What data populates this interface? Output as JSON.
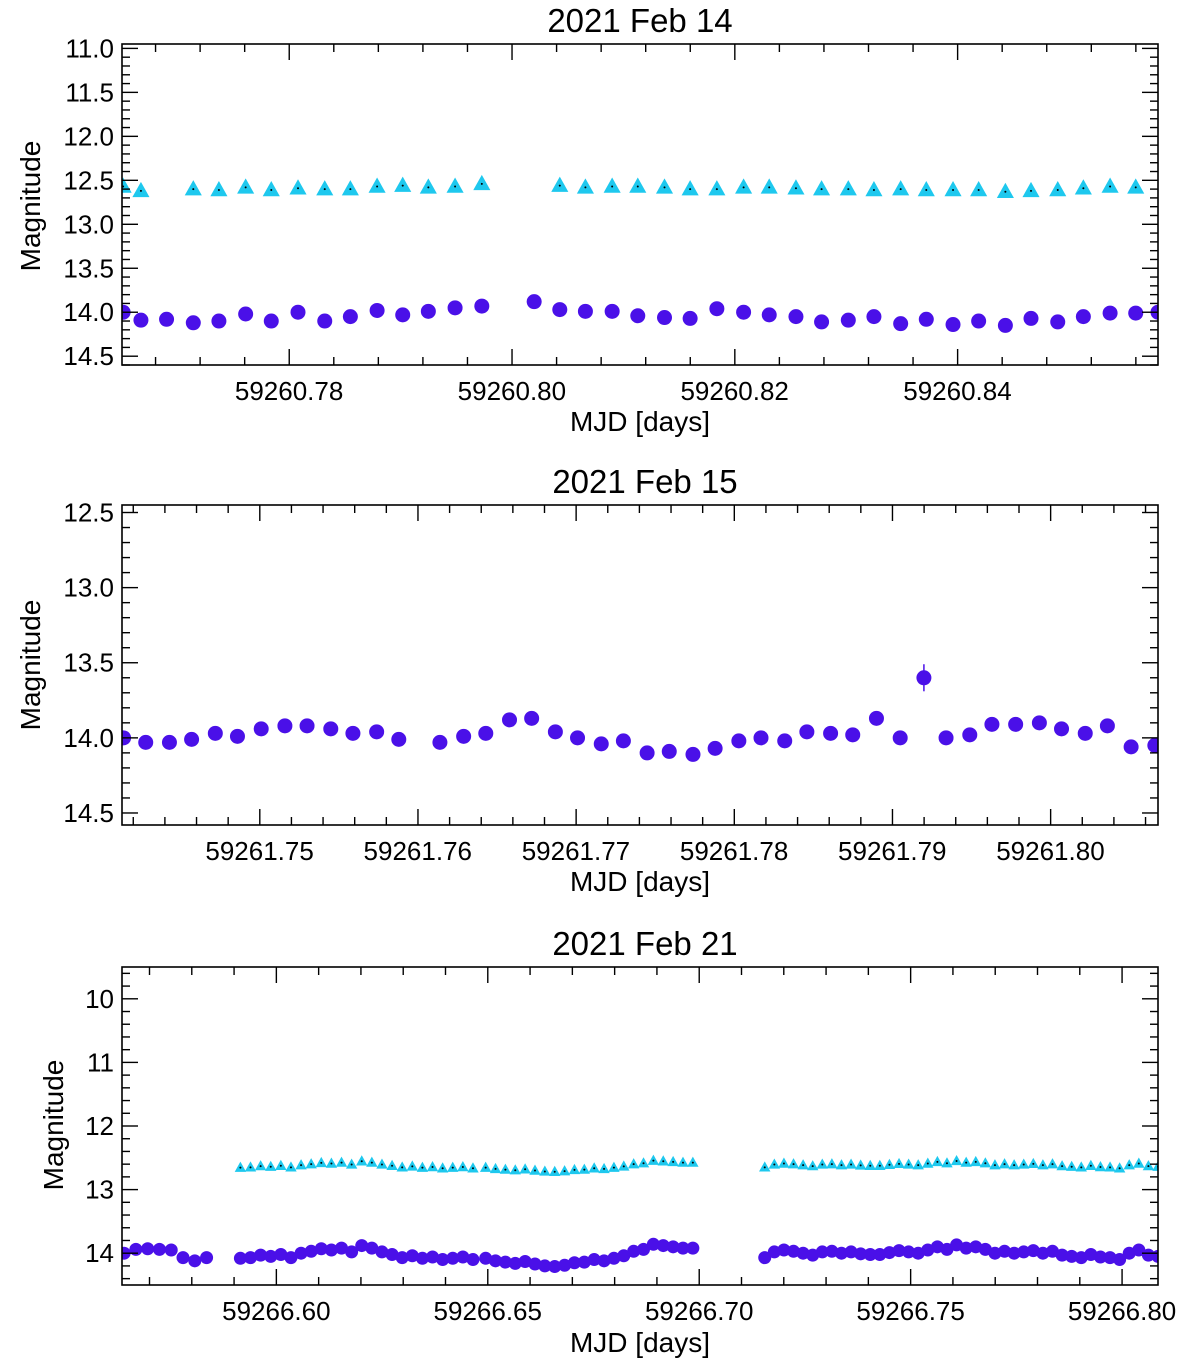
{
  "chart_data": [
    {
      "type": "scatter",
      "title": "2021 Feb 14",
      "xlabel": "MJD [days]",
      "ylabel": "Magnitude",
      "xlim": [
        59260.765,
        59260.858
      ],
      "ylim": [
        14.6,
        10.95
      ],
      "y_inverted": true,
      "xticks": [
        59260.78,
        59260.8,
        59260.82,
        59260.84
      ],
      "xtick_labels": [
        "59260.78",
        "59260.80",
        "59260.82",
        "59260.84"
      ],
      "yticks": [
        11.0,
        11.5,
        12.0,
        12.5,
        13.0,
        13.5,
        14.0,
        14.5
      ],
      "ytick_labels": [
        "11.0",
        "11.5",
        "12.0",
        "12.5",
        "13.0",
        "13.5",
        "14.0",
        "14.5"
      ],
      "series": [
        {
          "name": "triangles",
          "marker": "triangle",
          "color": "#1ec8ee",
          "x": [
            59260.7651,
            59260.7667,
            59260.7714,
            59260.7737,
            59260.7761,
            59260.7784,
            59260.7808,
            59260.7832,
            59260.7855,
            59260.7879,
            59260.7902,
            59260.7925,
            59260.7949,
            59260.7973,
            59260.8043,
            59260.8066,
            59260.809,
            59260.8113,
            59260.8137,
            59260.816,
            59260.8184,
            59260.8208,
            59260.8231,
            59260.8255,
            59260.8278,
            59260.8302,
            59260.8325,
            59260.8349,
            59260.8372,
            59260.8396,
            59260.8419,
            59260.8443,
            59260.8466,
            59260.849,
            59260.8513,
            59260.8537,
            59260.856
          ],
          "y": [
            12.57,
            12.62,
            12.6,
            12.61,
            12.58,
            12.61,
            12.59,
            12.6,
            12.6,
            12.57,
            12.56,
            12.58,
            12.57,
            12.54,
            12.56,
            12.58,
            12.57,
            12.57,
            12.58,
            12.6,
            12.6,
            12.58,
            12.58,
            12.59,
            12.6,
            12.6,
            12.61,
            12.6,
            12.61,
            12.61,
            12.61,
            12.63,
            12.62,
            12.61,
            12.59,
            12.57,
            12.58
          ]
        },
        {
          "name": "circles",
          "marker": "circle",
          "color": "#4a10e8",
          "x": [
            59260.7651,
            59260.7667,
            59260.769,
            59260.7714,
            59260.7737,
            59260.7761,
            59260.7784,
            59260.7808,
            59260.7832,
            59260.7855,
            59260.7879,
            59260.7902,
            59260.7925,
            59260.7949,
            59260.7973,
            59260.802,
            59260.8043,
            59260.8066,
            59260.809,
            59260.8113,
            59260.8137,
            59260.816,
            59260.8184,
            59260.8208,
            59260.8231,
            59260.8255,
            59260.8278,
            59260.8302,
            59260.8325,
            59260.8349,
            59260.8372,
            59260.8396,
            59260.8419,
            59260.8443,
            59260.8466,
            59260.849,
            59260.8513,
            59260.8537,
            59260.856,
            59260.858
          ],
          "y": [
            14.0,
            14.09,
            14.08,
            14.12,
            14.1,
            14.02,
            14.1,
            14.0,
            14.1,
            14.05,
            13.98,
            14.03,
            13.99,
            13.95,
            13.93,
            13.88,
            13.97,
            13.99,
            13.99,
            14.04,
            14.06,
            14.07,
            13.96,
            14.0,
            14.03,
            14.05,
            14.11,
            14.09,
            14.05,
            14.13,
            14.08,
            14.14,
            14.1,
            14.15,
            14.07,
            14.11,
            14.05,
            14.01,
            14.01,
            14.0
          ]
        }
      ]
    },
    {
      "type": "scatter",
      "title": "2021 Feb 15",
      "xlabel": "MJD [days]",
      "ylabel": "Magnitude",
      "xlim": [
        59261.7413,
        59261.8068
      ],
      "ylim": [
        14.58,
        12.45
      ],
      "y_inverted": true,
      "xticks": [
        59261.75,
        59261.76,
        59261.77,
        59261.78,
        59261.79,
        59261.8
      ],
      "xtick_labels": [
        "59261.75",
        "59261.76",
        "59261.77",
        "59261.78",
        "59261.79",
        "59261.80"
      ],
      "yticks": [
        12.5,
        13.0,
        13.5,
        14.0,
        14.5
      ],
      "ytick_labels": [
        "12.5",
        "13.0",
        "13.5",
        "14.0",
        "14.5"
      ],
      "series": [
        {
          "name": "circles",
          "marker": "circle",
          "color": "#4a10e8",
          "x": [
            59261.7414,
            59261.7428,
            59261.7443,
            59261.7457,
            59261.7472,
            59261.7486,
            59261.7501,
            59261.7516,
            59261.753,
            59261.7545,
            59261.7559,
            59261.7574,
            59261.7588,
            59261.7614,
            59261.7629,
            59261.7643,
            59261.7658,
            59261.7672,
            59261.7687,
            59261.7701,
            59261.7716,
            59261.773,
            59261.7745,
            59261.7759,
            59261.7774,
            59261.7788,
            59261.7803,
            59261.7817,
            59261.7832,
            59261.7846,
            59261.7861,
            59261.7875,
            59261.789,
            59261.7905,
            59261.792,
            59261.7934,
            59261.7949,
            59261.7963,
            59261.7978,
            59261.7993,
            59261.8007,
            59261.8022,
            59261.8036,
            59261.8051,
            59261.8066
          ],
          "y": [
            14.0,
            14.03,
            14.03,
            14.01,
            13.97,
            13.99,
            13.94,
            13.92,
            13.92,
            13.94,
            13.97,
            13.96,
            14.01,
            14.03,
            13.99,
            13.97,
            13.88,
            13.87,
            13.96,
            14.0,
            14.04,
            14.02,
            14.1,
            14.09,
            14.11,
            14.07,
            14.02,
            14.0,
            14.02,
            13.96,
            13.97,
            13.98,
            13.87,
            14.0,
            13.6,
            14.0,
            13.98,
            13.91,
            13.91,
            13.9,
            13.94,
            13.97,
            13.92,
            14.06,
            14.05
          ],
          "error_point": {
            "x": 59261.792,
            "y": 13.6,
            "err": 0.09
          }
        }
      ]
    },
    {
      "type": "scatter",
      "title": "2021 Feb 21",
      "xlabel": "MJD [days]",
      "ylabel": "Magnitude",
      "xlim": [
        59266.5635,
        59266.8085
      ],
      "ylim": [
        14.5,
        9.5
      ],
      "y_inverted": true,
      "xticks": [
        59266.6,
        59266.65,
        59266.7,
        59266.75,
        59266.8
      ],
      "xtick_labels": [
        "59266.60",
        "59266.65",
        "59266.70",
        "59266.75",
        "59266.80"
      ],
      "yticks": [
        10,
        11,
        12,
        13,
        14
      ],
      "ytick_labels": [
        "10",
        "11",
        "12",
        "13",
        "14"
      ],
      "segments": [
        {
          "x_start": 59266.564,
          "x_end": 59266.5835,
          "n": 8,
          "circle_mags": [
            14.0,
            13.94,
            13.93,
            13.94,
            13.95,
            14.07,
            14.12,
            14.07
          ]
        },
        {
          "x_start": 59266.5915,
          "x_end": 59266.6465,
          "n": 24,
          "circle_mags": [
            14.08,
            14.07,
            14.03,
            14.05,
            14.02,
            14.07,
            14.0,
            13.97,
            13.93,
            13.95,
            13.92,
            13.98,
            13.88,
            13.92,
            13.98,
            14.02,
            14.07,
            14.04,
            14.08,
            14.06,
            14.1,
            14.08,
            14.06,
            14.1
          ]
        },
        {
          "x_start": 59266.6495,
          "x_end": 59266.6985,
          "n": 22,
          "circle_mags": [
            14.08,
            14.12,
            14.14,
            14.16,
            14.13,
            14.17,
            14.2,
            14.21,
            14.19,
            14.15,
            14.14,
            14.1,
            14.12,
            14.08,
            14.04,
            13.97,
            13.94,
            13.86,
            13.88,
            13.9,
            13.92,
            13.92
          ]
        },
        {
          "x_start": 59266.7155,
          "x_end": 59266.8085,
          "n": 42,
          "circle_mags": [
            14.07,
            13.98,
            13.95,
            13.97,
            14.0,
            14.03,
            13.98,
            13.97,
            14.0,
            13.98,
            14.01,
            14.02,
            14.02,
            13.99,
            13.96,
            13.98,
            14.0,
            13.95,
            13.9,
            13.94,
            13.87,
            13.92,
            13.9,
            13.94,
            14.0,
            13.97,
            14.0,
            13.98,
            13.96,
            14.0,
            13.97,
            14.03,
            14.05,
            14.07,
            14.02,
            14.06,
            14.07,
            14.1,
            14.0,
            13.95,
            14.03,
            14.05
          ]
        }
      ],
      "triangle_mag_mean": 12.63
    }
  ]
}
